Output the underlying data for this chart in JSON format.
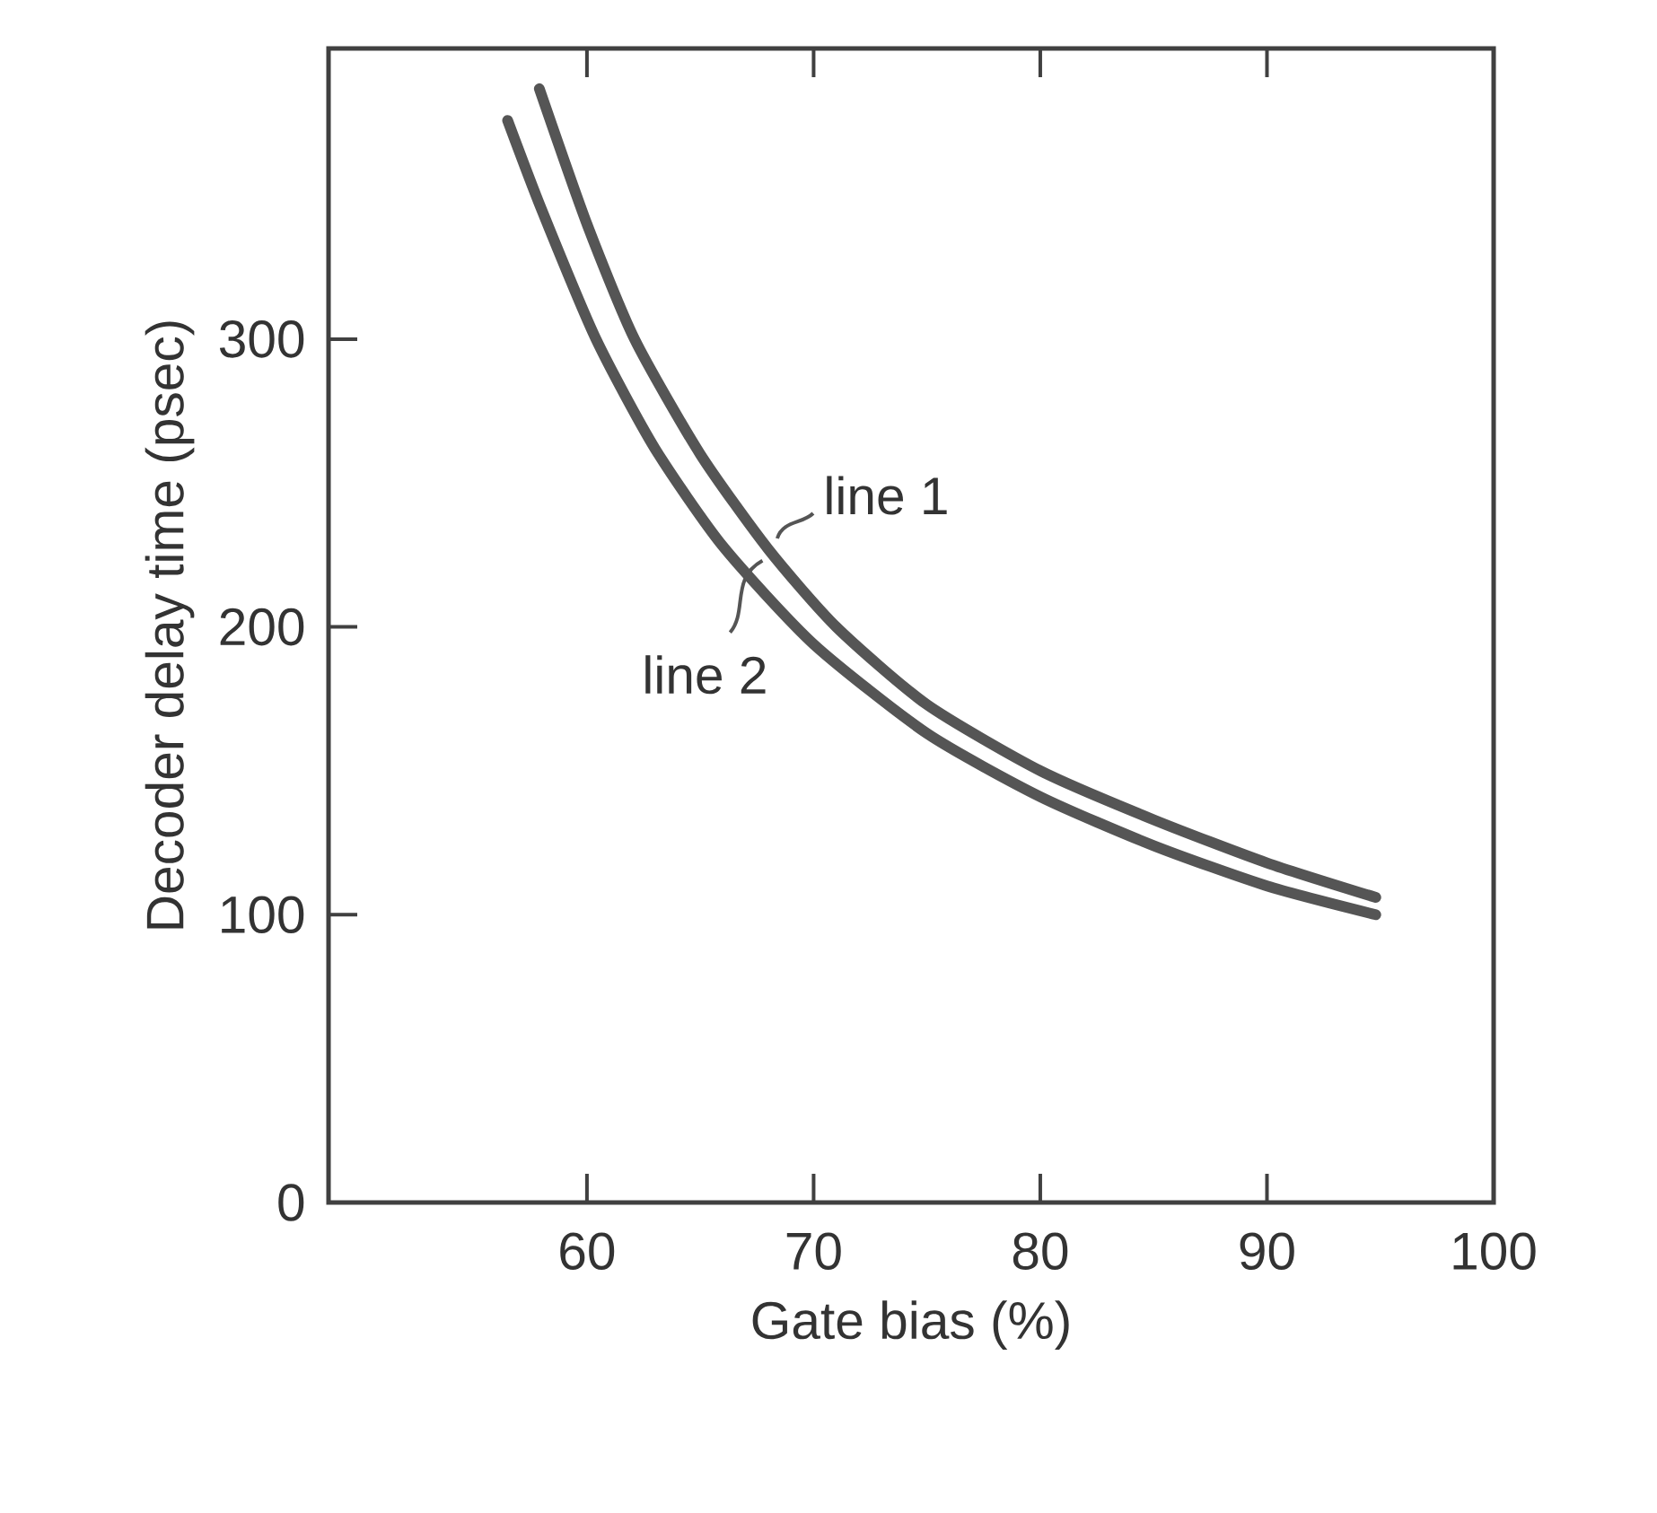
{
  "chart_data": {
    "type": "line",
    "xlabel": "Gate bias (%)",
    "ylabel": "Decoder delay time (psec)",
    "xlim": [
      48.6,
      100
    ],
    "ylim": [
      0,
      401
    ],
    "xticks": [
      60,
      70,
      80,
      90,
      100
    ],
    "yticks": [
      0,
      100,
      200,
      300
    ],
    "series": [
      {
        "name": "line 1",
        "color": "#555555",
        "x": [
          57.9,
          60,
          62.1,
          65,
          68,
          71,
          75,
          80,
          85,
          90,
          94.8
        ],
        "values": [
          387,
          340,
          300,
          260,
          227,
          200,
          173,
          150,
          133,
          118,
          106
        ]
      },
      {
        "name": "line 2",
        "color": "#555555",
        "x": [
          56.5,
          58,
          60.4,
          63,
          66,
          70,
          75,
          80,
          85,
          90,
          94.8
        ],
        "values": [
          376,
          345,
          300,
          262,
          228,
          194,
          163,
          141,
          124,
          110,
          100
        ]
      }
    ]
  }
}
